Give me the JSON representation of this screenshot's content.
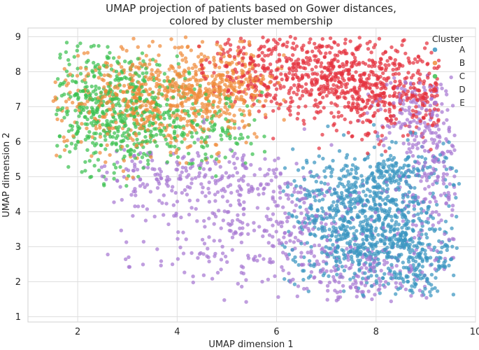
{
  "chart_data": {
    "type": "scatter",
    "title": "UMAP projection of patients based on Gower distances,",
    "subtitle": "colored by cluster membership",
    "xlabel": "UMAP dimension 1",
    "ylabel": "UMAP dimension 2",
    "xlim": [
      1.0,
      10.0
    ],
    "ylim": [
      0.85,
      9.25
    ],
    "xticks": [
      2,
      4,
      6,
      8,
      10
    ],
    "yticks": [
      1,
      2,
      3,
      4,
      5,
      6,
      7,
      8,
      9
    ],
    "grid": true,
    "legend": {
      "title": "Cluster",
      "position": "top-right"
    },
    "series": [
      {
        "name": "A",
        "color": "#3a96c1",
        "count": 1100,
        "blobs": [
          {
            "cx": 7.9,
            "cy": 3.3,
            "sx": 0.75,
            "sy": 0.75,
            "w": 0.55
          },
          {
            "cx": 7.6,
            "cy": 4.6,
            "sx": 0.85,
            "sy": 0.65,
            "w": 0.25
          },
          {
            "cx": 8.6,
            "cy": 5.2,
            "sx": 0.6,
            "sy": 0.45,
            "w": 0.1
          },
          {
            "cx": 8.9,
            "cy": 2.5,
            "sx": 0.45,
            "sy": 0.5,
            "w": 0.1
          }
        ],
        "bounds": {
          "x": [
            6.1,
            9.7
          ],
          "y": [
            1.55,
            6.5
          ]
        }
      },
      {
        "name": "B",
        "color": "#f08c3c",
        "count": 800,
        "blobs": [
          {
            "cx": 3.5,
            "cy": 7.2,
            "sx": 0.95,
            "sy": 0.75,
            "w": 0.75
          },
          {
            "cx": 5.0,
            "cy": 7.6,
            "sx": 0.55,
            "sy": 0.55,
            "w": 0.25
          }
        ],
        "bounds": {
          "x": [
            1.5,
            6.2
          ],
          "y": [
            4.9,
            9.0
          ]
        }
      },
      {
        "name": "C",
        "color": "#3cc150",
        "count": 650,
        "blobs": [
          {
            "cx": 2.6,
            "cy": 7.0,
            "sx": 0.75,
            "sy": 0.9,
            "w": 0.7
          },
          {
            "cx": 4.3,
            "cy": 6.4,
            "sx": 0.8,
            "sy": 0.6,
            "w": 0.3
          }
        ],
        "bounds": {
          "x": [
            1.55,
            5.8
          ],
          "y": [
            4.7,
            8.9
          ]
        }
      },
      {
        "name": "D",
        "color": "#e4323e",
        "count": 900,
        "blobs": [
          {
            "cx": 7.0,
            "cy": 7.9,
            "sx": 1.0,
            "sy": 0.65,
            "w": 0.6
          },
          {
            "cx": 8.4,
            "cy": 7.4,
            "sx": 0.7,
            "sy": 0.65,
            "w": 0.3
          },
          {
            "cx": 5.4,
            "cy": 8.2,
            "sx": 0.6,
            "sy": 0.5,
            "w": 0.1
          }
        ],
        "bounds": {
          "x": [
            4.4,
            9.3
          ],
          "y": [
            5.3,
            9.0
          ]
        }
      },
      {
        "name": "E",
        "color": "#a878d2",
        "count": 1000,
        "blobs": [
          {
            "cx": 6.0,
            "cy": 3.6,
            "sx": 1.3,
            "sy": 1.1,
            "w": 0.35
          },
          {
            "cx": 7.8,
            "cy": 2.2,
            "sx": 0.9,
            "sy": 0.45,
            "w": 0.15
          },
          {
            "cx": 9.1,
            "cy": 5.5,
            "sx": 0.35,
            "sy": 1.2,
            "w": 0.2
          },
          {
            "cx": 4.3,
            "cy": 5.0,
            "sx": 1.0,
            "sy": 0.45,
            "w": 0.2
          },
          {
            "cx": 8.7,
            "cy": 7.0,
            "sx": 0.4,
            "sy": 0.5,
            "w": 0.1
          }
        ],
        "bounds": {
          "x": [
            2.4,
            9.6
          ],
          "y": [
            1.4,
            7.9
          ]
        }
      }
    ]
  }
}
